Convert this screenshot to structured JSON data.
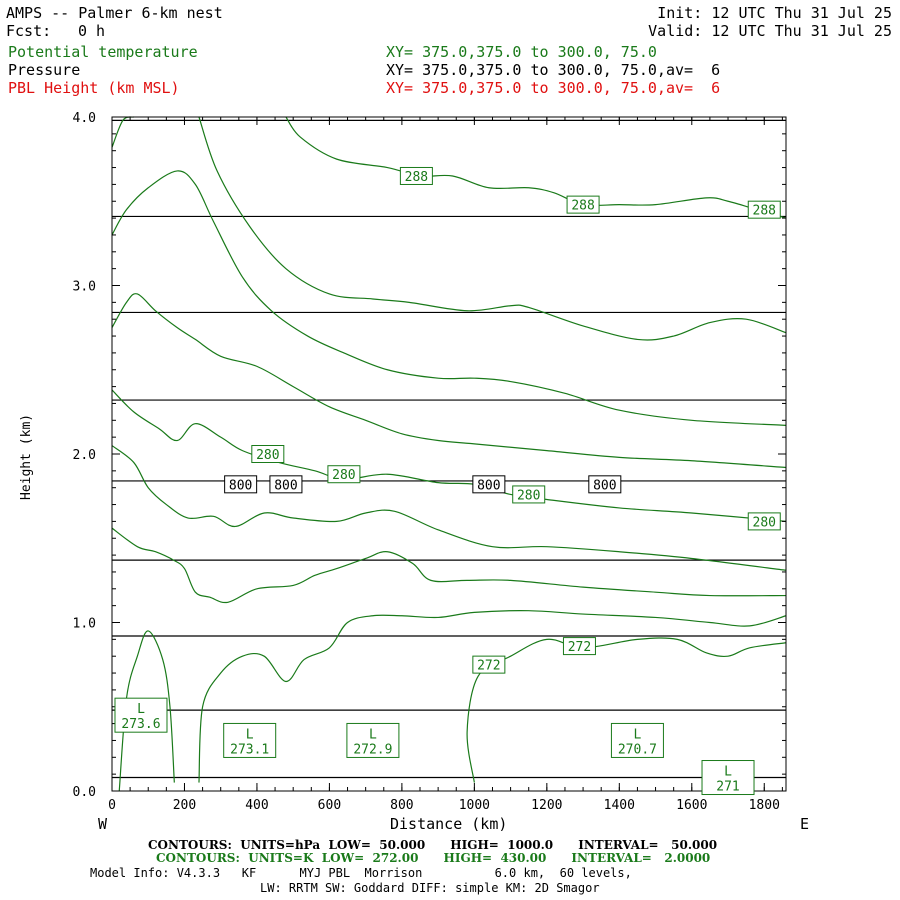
{
  "header": {
    "model_title": "AMPS -- Palmer 6-km nest",
    "fcst_label": "Fcst:",
    "fcst_value": "0 h",
    "init": "Init: 12 UTC Thu 31 Jul 25",
    "valid": "Valid: 12 UTC Thu 31 Jul 25",
    "field1": "Potential temperature",
    "field2": "Pressure",
    "field3": "PBL Height (km MSL)",
    "xy1": "XY= 375.0,375.0 to 300.0, 75.0",
    "xy2": "XY= 375.0,375.0 to 300.0, 75.0,av=  6",
    "xy3": "XY= 375.0,375.0 to 300.0, 75.0,av=  6"
  },
  "colors": {
    "theta": "#1a7a1a",
    "pressure": "#000000",
    "pbl": "#e01010"
  },
  "footer": {
    "contours_p": "CONTOURS:  UNITS=hPa  LOW=  50.000      HIGH=  1000.0      INTERVAL=   50.000",
    "contours_t": "CONTOURS:  UNITS=K  LOW=  272.00      HIGH=  430.00      INTERVAL=   2.0000",
    "model_info": "Model Info: V4.3.3   KF      MYJ PBL  Morrison          6.0 km,  60 levels,",
    "physics": "LW: RRTM SW: Goddard DIFF: simple KM: 2D Smagor"
  },
  "chart_data": {
    "type": "line",
    "xlabel": "Distance (km)",
    "ylabel": "Height (km)",
    "x_left_label": "W",
    "x_right_label": "E",
    "xlim": [
      0,
      1860
    ],
    "ylim": [
      0,
      4.0
    ],
    "x_ticks": [
      "0",
      "200",
      "400",
      "600",
      "800",
      "1000",
      "1200",
      "1400",
      "1600",
      "1800"
    ],
    "x_tick_values": [
      0,
      200,
      400,
      600,
      800,
      1000,
      1200,
      1400,
      1600,
      1800
    ],
    "y_ticks": [
      "0.0",
      "1.0",
      "2.0",
      "3.0",
      "4.0"
    ],
    "y_tick_values": [
      0,
      1,
      2,
      3,
      4
    ],
    "pressure_series": {
      "name": "Pressure (hPa)",
      "heights_km": [
        0.08,
        0.48,
        0.92,
        1.37,
        1.84,
        2.32,
        2.84,
        3.41,
        3.98
      ]
    },
    "theta_series": [
      {
        "points": [
          [
            0,
            1.56
          ],
          [
            70,
            1.45
          ],
          [
            120,
            1.42
          ],
          [
            170,
            1.37
          ],
          [
            200,
            1.32
          ],
          [
            230,
            1.18
          ],
          [
            270,
            1.15
          ],
          [
            320,
            1.12
          ],
          [
            400,
            1.2
          ],
          [
            500,
            1.22
          ],
          [
            560,
            1.28
          ],
          [
            620,
            1.32
          ],
          [
            700,
            1.38
          ],
          [
            760,
            1.42
          ],
          [
            830,
            1.35
          ],
          [
            880,
            1.25
          ],
          [
            980,
            1.25
          ],
          [
            1100,
            1.25
          ],
          [
            1300,
            1.21
          ],
          [
            1500,
            1.18
          ],
          [
            1650,
            1.16
          ],
          [
            1860,
            1.16
          ]
        ]
      },
      {
        "points": [
          [
            0,
            2.05
          ],
          [
            60,
            1.95
          ],
          [
            100,
            1.8
          ],
          [
            150,
            1.7
          ],
          [
            210,
            1.62
          ],
          [
            280,
            1.63
          ],
          [
            340,
            1.57
          ],
          [
            420,
            1.65
          ],
          [
            500,
            1.62
          ],
          [
            620,
            1.6
          ],
          [
            700,
            1.65
          ],
          [
            780,
            1.66
          ],
          [
            900,
            1.55
          ],
          [
            1050,
            1.45
          ],
          [
            1200,
            1.45
          ],
          [
            1400,
            1.42
          ],
          [
            1600,
            1.38
          ],
          [
            1860,
            1.31
          ]
        ]
      },
      {
        "points": [
          [
            0,
            2.38
          ],
          [
            60,
            2.25
          ],
          [
            130,
            2.15
          ],
          [
            180,
            2.08
          ],
          [
            230,
            2.18
          ],
          [
            300,
            2.1
          ],
          [
            360,
            2.02
          ],
          [
            460,
            1.95
          ],
          [
            560,
            1.9
          ],
          [
            640,
            1.85
          ],
          [
            760,
            1.88
          ],
          [
            900,
            1.83
          ],
          [
            1000,
            1.82
          ],
          [
            1100,
            1.76
          ],
          [
            1200,
            1.73
          ],
          [
            1400,
            1.68
          ],
          [
            1600,
            1.65
          ],
          [
            1860,
            1.6
          ]
        ]
      },
      {
        "points": [
          [
            0,
            2.75
          ],
          [
            40,
            2.9
          ],
          [
            70,
            2.95
          ],
          [
            120,
            2.85
          ],
          [
            180,
            2.75
          ],
          [
            230,
            2.68
          ],
          [
            300,
            2.58
          ],
          [
            400,
            2.52
          ],
          [
            500,
            2.4
          ],
          [
            600,
            2.28
          ],
          [
            700,
            2.2
          ],
          [
            800,
            2.12
          ],
          [
            900,
            2.08
          ],
          [
            1000,
            2.06
          ],
          [
            1200,
            2.02
          ],
          [
            1400,
            1.98
          ],
          [
            1600,
            1.96
          ],
          [
            1860,
            1.92
          ]
        ]
      },
      {
        "points": [
          [
            0,
            3.3
          ],
          [
            40,
            3.45
          ],
          [
            100,
            3.58
          ],
          [
            180,
            3.68
          ],
          [
            230,
            3.6
          ],
          [
            280,
            3.38
          ],
          [
            360,
            3.05
          ],
          [
            440,
            2.85
          ],
          [
            540,
            2.7
          ],
          [
            640,
            2.6
          ],
          [
            760,
            2.5
          ],
          [
            900,
            2.45
          ],
          [
            1000,
            2.45
          ],
          [
            1100,
            2.43
          ],
          [
            1250,
            2.36
          ],
          [
            1400,
            2.26
          ],
          [
            1600,
            2.2
          ],
          [
            1860,
            2.17
          ]
        ]
      },
      {
        "points": [
          [
            0,
            3.82
          ],
          [
            30,
            3.98
          ],
          [
            60,
            4.0
          ]
        ]
      },
      {
        "points": [
          [
            240,
            4.0
          ],
          [
            290,
            3.68
          ],
          [
            380,
            3.35
          ],
          [
            480,
            3.1
          ],
          [
            600,
            2.95
          ],
          [
            720,
            2.92
          ],
          [
            820,
            2.9
          ],
          [
            980,
            2.85
          ],
          [
            1100,
            2.88
          ],
          [
            1150,
            2.87
          ],
          [
            1300,
            2.76
          ],
          [
            1450,
            2.68
          ],
          [
            1550,
            2.7
          ],
          [
            1650,
            2.78
          ],
          [
            1750,
            2.8
          ],
          [
            1860,
            2.72
          ]
        ]
      },
      {
        "points": [
          [
            480,
            4.0
          ],
          [
            520,
            3.88
          ],
          [
            620,
            3.75
          ],
          [
            760,
            3.7
          ],
          [
            850,
            3.65
          ],
          [
            940,
            3.65
          ],
          [
            1040,
            3.58
          ],
          [
            1150,
            3.58
          ],
          [
            1220,
            3.55
          ],
          [
            1300,
            3.48
          ],
          [
            1400,
            3.48
          ],
          [
            1500,
            3.48
          ],
          [
            1640,
            3.52
          ],
          [
            1700,
            3.5
          ],
          [
            1780,
            3.45
          ],
          [
            1860,
            3.4
          ]
        ]
      },
      {
        "points": [
          [
            20,
            0.0
          ],
          [
            40,
            0.55
          ],
          [
            70,
            0.8
          ],
          [
            100,
            0.95
          ],
          [
            140,
            0.78
          ],
          [
            160,
            0.5
          ],
          [
            172,
            0.05
          ]
        ]
      },
      {
        "points": [
          [
            240,
            0.05
          ],
          [
            250,
            0.5
          ],
          [
            300,
            0.7
          ],
          [
            360,
            0.8
          ],
          [
            420,
            0.8
          ],
          [
            480,
            0.65
          ],
          [
            530,
            0.78
          ],
          [
            600,
            0.85
          ],
          [
            650,
            1.0
          ],
          [
            720,
            1.04
          ],
          [
            800,
            1.04
          ],
          [
            900,
            1.03
          ],
          [
            1000,
            1.06
          ],
          [
            1150,
            1.07
          ],
          [
            1300,
            1.05
          ],
          [
            1500,
            1.03
          ],
          [
            1650,
            1.0
          ],
          [
            1760,
            0.98
          ],
          [
            1860,
            1.04
          ]
        ]
      },
      {
        "points": [
          [
            1000,
            0.05
          ],
          [
            980,
            0.35
          ],
          [
            1010,
            0.68
          ],
          [
            1100,
            0.8
          ],
          [
            1200,
            0.9
          ],
          [
            1300,
            0.85
          ],
          [
            1450,
            0.9
          ],
          [
            1560,
            0.9
          ],
          [
            1640,
            0.82
          ],
          [
            1700,
            0.8
          ],
          [
            1760,
            0.85
          ],
          [
            1860,
            0.88
          ]
        ]
      }
    ],
    "pressure_labels": [
      {
        "text": "800",
        "x": 355,
        "y": 1.82
      },
      {
        "text": "800",
        "x": 480,
        "y": 1.82
      },
      {
        "text": "800",
        "x": 1040,
        "y": 1.82
      },
      {
        "text": "800",
        "x": 1360,
        "y": 1.82
      }
    ],
    "theta_labels": [
      {
        "text": "288",
        "x": 840,
        "y": 3.65
      },
      {
        "text": "288",
        "x": 1300,
        "y": 3.48
      },
      {
        "text": "288",
        "x": 1800,
        "y": 3.45
      },
      {
        "text": "280",
        "x": 430,
        "y": 2.0
      },
      {
        "text": "280",
        "x": 640,
        "y": 1.88
      },
      {
        "text": "280",
        "x": 1150,
        "y": 1.76
      },
      {
        "text": "280",
        "x": 1800,
        "y": 1.6
      },
      {
        "text": "272",
        "x": 1040,
        "y": 0.75
      },
      {
        "text": "272",
        "x": 1290,
        "y": 0.86
      }
    ],
    "minima": [
      {
        "label": "L",
        "value": "273.6",
        "x": 80,
        "y": 0.45
      },
      {
        "label": "L",
        "value": "273.1",
        "x": 380,
        "y": 0.3
      },
      {
        "label": "L",
        "value": "272.9",
        "x": 720,
        "y": 0.3
      },
      {
        "label": "L",
        "value": "270.7",
        "x": 1450,
        "y": 0.3
      },
      {
        "label": "L",
        "value": "271",
        "x": 1700,
        "y": 0.08
      }
    ]
  }
}
